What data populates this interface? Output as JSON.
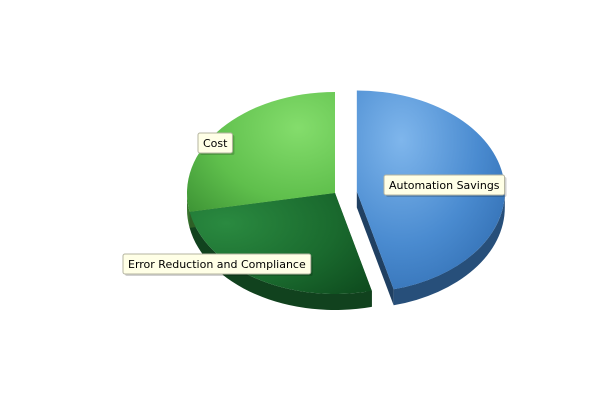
{
  "chart_data": {
    "type": "pie",
    "style": "3d-exploded",
    "slices": [
      {
        "label": "Automation Savings",
        "value": 46,
        "color": "#3f7fc4",
        "exploded": true
      },
      {
        "label": "Error Reduction and Compliance",
        "value": 26,
        "color": "#1c6a30",
        "exploded": false
      },
      {
        "label": "Cost",
        "value": 28,
        "color": "#5cbd4c",
        "exploded": false
      }
    ],
    "label_background": "#ffffe6",
    "legend": "none"
  }
}
